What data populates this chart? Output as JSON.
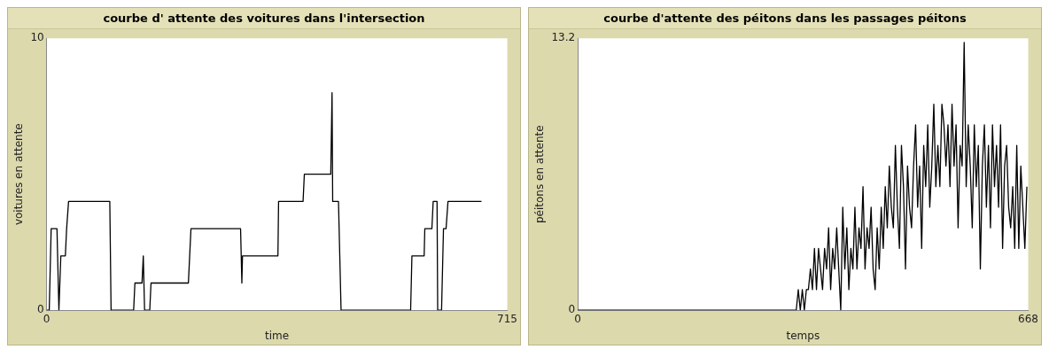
{
  "chart_data": [
    {
      "type": "line",
      "title": "courbe d' attente des voitures dans l'intersection",
      "xlabel": "time",
      "ylabel": "voitures en attente",
      "color": "#000000",
      "x": [
        0,
        4,
        7,
        16,
        19,
        22,
        29,
        31,
        32,
        34,
        98,
        100,
        135,
        137,
        148,
        150,
        152,
        160,
        162,
        220,
        224,
        301,
        303,
        304,
        359,
        360,
        398,
        400,
        441,
        443,
        444,
        453,
        455,
        457,
        565,
        567,
        586,
        587,
        598,
        600,
        606,
        607,
        613,
        616,
        620,
        623,
        675
      ],
      "values": [
        0,
        0,
        3,
        3,
        0,
        2,
        2,
        3,
        3,
        4,
        4,
        0,
        0,
        1,
        1,
        2,
        0,
        0,
        1,
        1,
        3,
        3,
        1,
        2,
        2,
        4,
        4,
        5,
        5,
        8,
        4,
        4,
        2,
        0,
        0,
        2,
        2,
        3,
        3,
        4,
        4,
        0,
        0,
        3,
        3,
        4,
        4
      ],
      "xlim": [
        0,
        715
      ],
      "ylim": [
        0,
        10
      ],
      "xticks": [
        0,
        715
      ],
      "yticks": [
        0,
        10
      ]
    },
    {
      "type": "line",
      "title": "courbe d'attente des péitons dans les passages péitons",
      "xlabel": "temps",
      "ylabel": "péitons en attente",
      "color": "#000000",
      "x": [
        0,
        321,
        324,
        327,
        330,
        333,
        336,
        339,
        342,
        345,
        348,
        351,
        354,
        357,
        360,
        363,
        366,
        369,
        372,
        375,
        378,
        381,
        384,
        387,
        390,
        393,
        396,
        399,
        402,
        405,
        408,
        411,
        414,
        417,
        420,
        423,
        426,
        429,
        432,
        435,
        438,
        441,
        444,
        447,
        450,
        453,
        456,
        459,
        462,
        465,
        468,
        471,
        474,
        477,
        480,
        483,
        486,
        489,
        492,
        495,
        498,
        501,
        504,
        507,
        510,
        513,
        516,
        519,
        522,
        525,
        528,
        531,
        534,
        537,
        540,
        543,
        546,
        549,
        552,
        555,
        558,
        561,
        564,
        567,
        570,
        573,
        576,
        579,
        582,
        585,
        588,
        591,
        594,
        597,
        600,
        603,
        606,
        609,
        612,
        615,
        618,
        621,
        624,
        627,
        630,
        633,
        636,
        639,
        642,
        645,
        648,
        651,
        654,
        657,
        660,
        663,
        666
      ],
      "values": [
        0,
        0,
        0,
        1,
        0,
        1,
        0,
        1,
        1,
        2,
        1,
        3,
        1,
        3,
        2,
        1,
        3,
        2,
        4,
        1,
        3,
        2,
        4,
        2,
        0,
        5,
        2,
        4,
        1,
        3,
        2,
        5,
        2,
        4,
        3,
        6,
        2,
        4,
        3,
        5,
        2,
        1,
        4,
        2,
        5,
        3,
        6,
        4,
        7,
        5,
        4,
        8,
        5,
        3,
        8,
        6,
        2,
        7,
        5,
        4,
        7,
        9,
        5,
        7,
        3,
        8,
        6,
        9,
        5,
        7,
        10,
        6,
        8,
        6,
        10,
        9,
        7,
        9,
        6,
        10,
        7,
        9,
        4,
        8,
        7,
        13,
        6,
        9,
        7,
        4,
        9,
        6,
        8,
        2,
        7,
        9,
        5,
        8,
        4,
        9,
        6,
        8,
        5,
        9,
        3,
        7,
        8,
        5,
        4,
        6,
        3,
        8,
        3,
        7,
        5,
        3,
        6
      ],
      "xlim": [
        0,
        668
      ],
      "ylim": [
        0,
        13.2
      ],
      "xticks": [
        0,
        668
      ],
      "yticks": [
        0,
        13.2
      ]
    }
  ]
}
